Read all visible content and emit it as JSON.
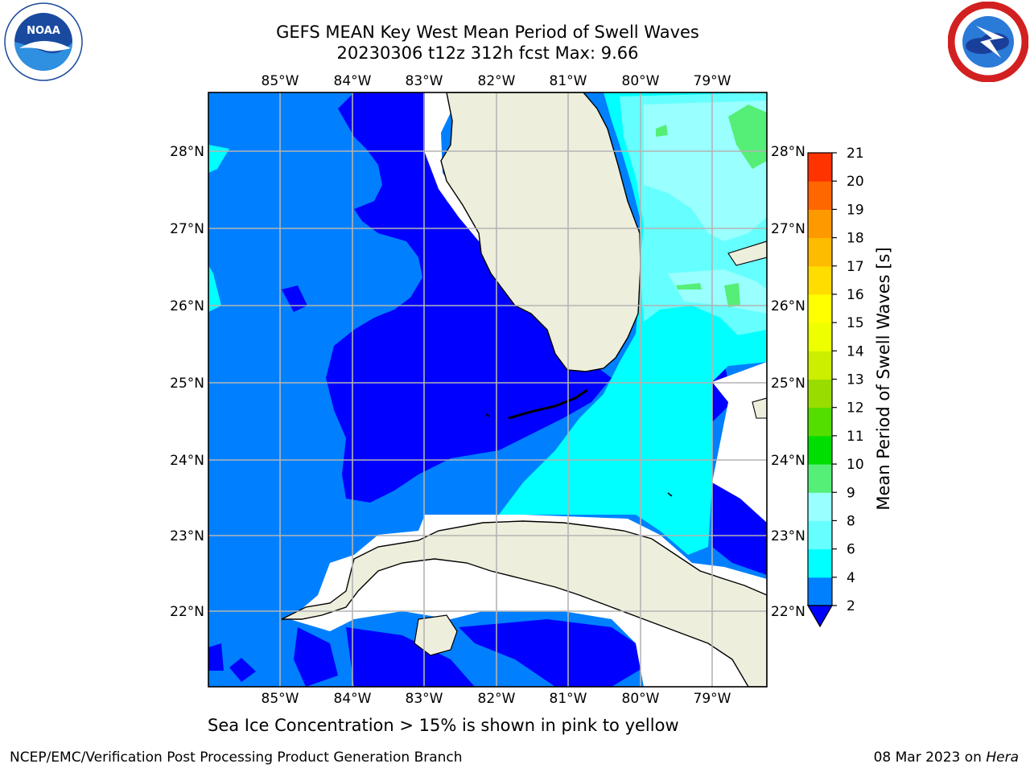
{
  "header": {
    "title_line1": "GEFS MEAN Key West Mean Period of Swell Waves",
    "title_line2": "20230306 t12z 312h fcst   Max: 9.66"
  },
  "logos": {
    "left": "noaa-logo",
    "right": "nws-logo"
  },
  "map": {
    "lon_labels": [
      "85°W",
      "84°W",
      "83°W",
      "82°W",
      "81°W",
      "80°W",
      "79°W"
    ],
    "lat_labels": [
      "28°N",
      "27°N",
      "26°N",
      "25°N",
      "24°N",
      "23°N",
      "22°N"
    ],
    "colors": {
      "land": "#eeeedd",
      "level_2_4": "#0080ff",
      "level_below_2": "#0000ff",
      "level_4_6": "#00ffff",
      "level_6_8": "#66ffff",
      "level_8_9": "#99ffff",
      "level_9_10": "#55ee77",
      "grid": "#b4b4b4"
    }
  },
  "colorbar": {
    "label": "Mean Period of Swell Waves [s]",
    "ticks": [
      "2",
      "4",
      "6",
      "8",
      "9",
      "10",
      "11",
      "12",
      "13",
      "14",
      "15",
      "16",
      "17",
      "18",
      "19",
      "20",
      "21"
    ],
    "colors": [
      "#0080ff",
      "#00ffff",
      "#66ffff",
      "#99ffff",
      "#55ee77",
      "#00dd00",
      "#55dd00",
      "#99dd00",
      "#ccee00",
      "#eeff00",
      "#ffff00",
      "#ffdd00",
      "#ffbb00",
      "#ff9900",
      "#ff6600",
      "#ff3300"
    ],
    "extend_color": "#0000ff"
  },
  "notes": {
    "sea_ice": "Sea Ice Concentration > 15% is shown in pink to yellow"
  },
  "footer": {
    "left": "NCEP/EMC/Verification Post Processing Product Generation Branch",
    "date": "08 Mar 2023 on",
    "host": "Hera"
  }
}
